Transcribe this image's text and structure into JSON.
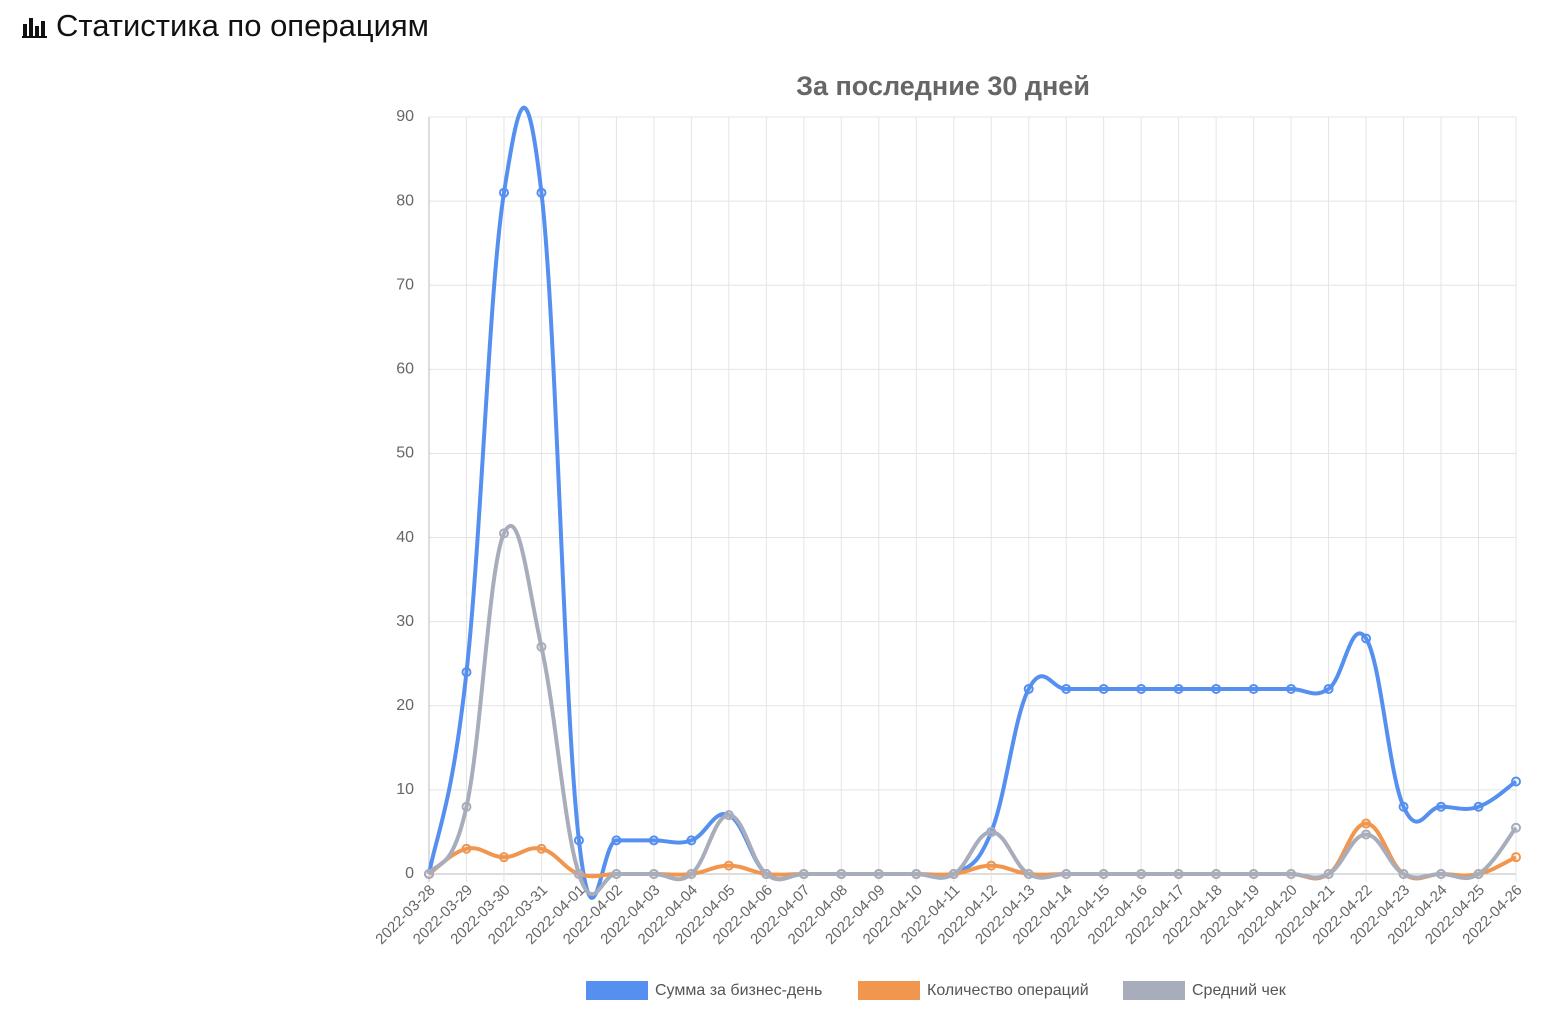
{
  "header": {
    "title": "Статистика по операциям"
  },
  "chart_data": {
    "type": "line",
    "title": "За последние 30 дней",
    "categories": [
      "2022-03-28",
      "2022-03-29",
      "2022-03-30",
      "2022-03-31",
      "2022-04-01",
      "2022-04-02",
      "2022-04-03",
      "2022-04-04",
      "2022-04-05",
      "2022-04-06",
      "2022-04-07",
      "2022-04-08",
      "2022-04-09",
      "2022-04-10",
      "2022-04-11",
      "2022-04-12",
      "2022-04-13",
      "2022-04-14",
      "2022-04-15",
      "2022-04-16",
      "2022-04-17",
      "2022-04-18",
      "2022-04-19",
      "2022-04-20",
      "2022-04-21",
      "2022-04-22",
      "2022-04-23",
      "2022-04-24",
      "2022-04-25",
      "2022-04-26"
    ],
    "series": [
      {
        "name": "Сумма за бизнес-день",
        "color": "#5590f0",
        "values": [
          0,
          24,
          81,
          81,
          4,
          4,
          4,
          4,
          7,
          0,
          0,
          0,
          0,
          0,
          0,
          5,
          22,
          22,
          22,
          22,
          22,
          22,
          22,
          22,
          22,
          28,
          8,
          8,
          8,
          11
        ]
      },
      {
        "name": "Количество операций",
        "color": "#f0964f",
        "values": [
          0,
          3,
          2,
          3,
          0,
          0,
          0,
          0,
          1,
          0,
          0,
          0,
          0,
          0,
          0,
          1,
          0,
          0,
          0,
          0,
          0,
          0,
          0,
          0,
          0,
          6,
          0,
          0,
          0,
          2
        ]
      },
      {
        "name": "Средний чек",
        "color": "#a8adbc",
        "values": [
          0,
          8,
          40.5,
          27,
          0,
          0,
          0,
          0,
          7,
          0,
          0,
          0,
          0,
          0,
          0,
          5,
          0,
          0,
          0,
          0,
          0,
          0,
          0,
          0,
          0,
          4.7,
          0,
          0,
          0,
          5.5
        ]
      }
    ],
    "ylim": [
      0,
      90
    ],
    "yticks": [
      0,
      10,
      20,
      30,
      40,
      50,
      60,
      70,
      80,
      90
    ],
    "grid": true
  }
}
